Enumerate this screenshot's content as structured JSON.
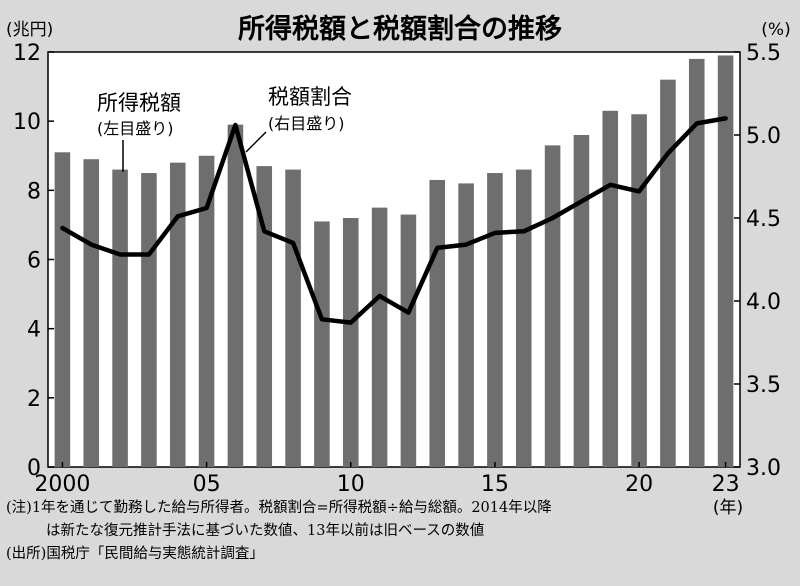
{
  "chart_data": {
    "type": "bar+line",
    "title": "所得税額と税額割合の推移",
    "left_unit": "(兆円)",
    "right_unit": "(%)",
    "x_unit": "(年)",
    "x": [
      2000,
      2001,
      2002,
      2003,
      2004,
      2005,
      2006,
      2007,
      2008,
      2009,
      2010,
      2011,
      2012,
      2013,
      2014,
      2015,
      2016,
      2017,
      2018,
      2019,
      2020,
      2021,
      2022,
      2023
    ],
    "x_tick_labels": [
      {
        "x": 2000,
        "label": "2000"
      },
      {
        "x": 2005,
        "label": "05"
      },
      {
        "x": 2010,
        "label": "10"
      },
      {
        "x": 2015,
        "label": "15"
      },
      {
        "x": 2020,
        "label": "20"
      },
      {
        "x": 2023,
        "label": "23"
      }
    ],
    "left_axis": {
      "min": 0,
      "max": 12,
      "ticks": [
        0,
        2,
        4,
        6,
        8,
        10,
        12
      ]
    },
    "right_axis": {
      "min": 3.0,
      "max": 5.5,
      "ticks": [
        "3.0",
        "3.5",
        "4.0",
        "4.5",
        "5.0",
        "5.5"
      ]
    },
    "series": [
      {
        "name": "所得税額",
        "sublabel": "(左目盛り)",
        "type": "bar",
        "axis": "left",
        "color": "#6e6e6e",
        "values": [
          9.1,
          8.9,
          8.6,
          8.5,
          8.8,
          9.0,
          9.9,
          8.7,
          8.6,
          7.1,
          7.2,
          7.5,
          7.3,
          8.3,
          8.2,
          8.5,
          8.6,
          9.3,
          9.6,
          10.3,
          10.2,
          11.2,
          11.8,
          11.9
        ]
      },
      {
        "name": "税額割合",
        "sublabel": "(右目盛り)",
        "type": "line",
        "axis": "right",
        "color": "#000000",
        "values": [
          4.44,
          4.34,
          4.28,
          4.28,
          4.51,
          4.56,
          5.06,
          4.42,
          4.35,
          3.89,
          3.87,
          4.03,
          3.93,
          4.32,
          4.34,
          4.41,
          4.42,
          4.5,
          4.6,
          4.7,
          4.66,
          4.89,
          5.07,
          5.1
        ]
      }
    ],
    "notes": [
      "(注)1年を通じて勤務した給与所得者。税額割合=所得税額÷給与総額。2014年以降",
      "は新たな復元推計手法に基づいた数値、13年以前は旧ベースの数値",
      "(出所)国税庁「民間給与実態統計調査」"
    ]
  }
}
